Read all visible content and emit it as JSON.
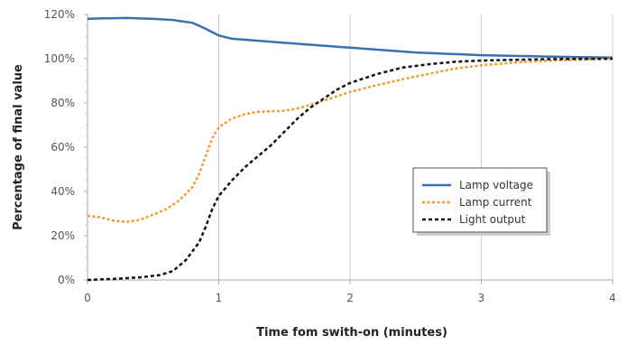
{
  "chart_data": {
    "type": "line",
    "xlabel": "Time fom swith-on (minutes)",
    "ylabel": "Percentage of final value",
    "xlim": [
      0,
      4
    ],
    "ylim": [
      0,
      120
    ],
    "x_ticks": [
      "0",
      "1",
      "2",
      "3",
      "4"
    ],
    "y_ticks": [
      "0%",
      "20%",
      "40%",
      "60%",
      "80%",
      "100%",
      "120%"
    ],
    "grid": "vertical",
    "legend_position": "right",
    "series": [
      {
        "name": "Lamp voltage",
        "color": "#3a6fb3",
        "style": "solid",
        "points": [
          [
            0,
            118
          ],
          [
            0.1,
            118.2
          ],
          [
            0.3,
            118.4
          ],
          [
            0.5,
            118
          ],
          [
            0.65,
            117.5
          ],
          [
            0.8,
            116.2
          ],
          [
            0.9,
            113.5
          ],
          [
            1.0,
            110.5
          ],
          [
            1.1,
            109
          ],
          [
            1.5,
            107.2
          ],
          [
            2.0,
            105
          ],
          [
            2.5,
            102.8
          ],
          [
            3.0,
            101.6
          ],
          [
            3.5,
            101
          ],
          [
            4.0,
            100.5
          ]
        ]
      },
      {
        "name": "Lamp current",
        "color": "#f2992e",
        "style": "dotted",
        "points": [
          [
            0,
            29
          ],
          [
            0.1,
            28.3
          ],
          [
            0.2,
            26.8
          ],
          [
            0.3,
            26.3
          ],
          [
            0.4,
            27.2
          ],
          [
            0.5,
            29.5
          ],
          [
            0.6,
            32
          ],
          [
            0.7,
            36
          ],
          [
            0.8,
            42
          ],
          [
            0.85,
            48
          ],
          [
            0.9,
            56
          ],
          [
            0.95,
            64
          ],
          [
            1.0,
            69
          ],
          [
            1.1,
            73
          ],
          [
            1.2,
            75
          ],
          [
            1.3,
            76
          ],
          [
            1.5,
            76.5
          ],
          [
            1.6,
            77.5
          ],
          [
            1.8,
            81
          ],
          [
            2.0,
            85
          ],
          [
            2.2,
            88
          ],
          [
            2.5,
            92
          ],
          [
            2.8,
            95.5
          ],
          [
            3.0,
            97
          ],
          [
            3.3,
            98.5
          ],
          [
            3.6,
            99.3
          ],
          [
            4.0,
            100
          ]
        ]
      },
      {
        "name": "Light output",
        "color": "#111111",
        "style": "dashed",
        "points": [
          [
            0,
            0
          ],
          [
            0.2,
            0.5
          ],
          [
            0.4,
            1.2
          ],
          [
            0.55,
            2.2
          ],
          [
            0.65,
            4
          ],
          [
            0.75,
            9
          ],
          [
            0.85,
            17
          ],
          [
            0.9,
            24
          ],
          [
            0.95,
            32
          ],
          [
            1.0,
            38
          ],
          [
            1.1,
            45
          ],
          [
            1.2,
            51
          ],
          [
            1.3,
            56
          ],
          [
            1.4,
            61
          ],
          [
            1.5,
            67
          ],
          [
            1.6,
            73
          ],
          [
            1.7,
            78
          ],
          [
            1.8,
            82
          ],
          [
            1.9,
            86
          ],
          [
            2.0,
            89
          ],
          [
            2.2,
            93
          ],
          [
            2.4,
            96
          ],
          [
            2.6,
            97.5
          ],
          [
            2.8,
            98.6
          ],
          [
            3.0,
            99.2
          ],
          [
            3.5,
            99.8
          ],
          [
            4.0,
            100
          ]
        ]
      }
    ]
  }
}
